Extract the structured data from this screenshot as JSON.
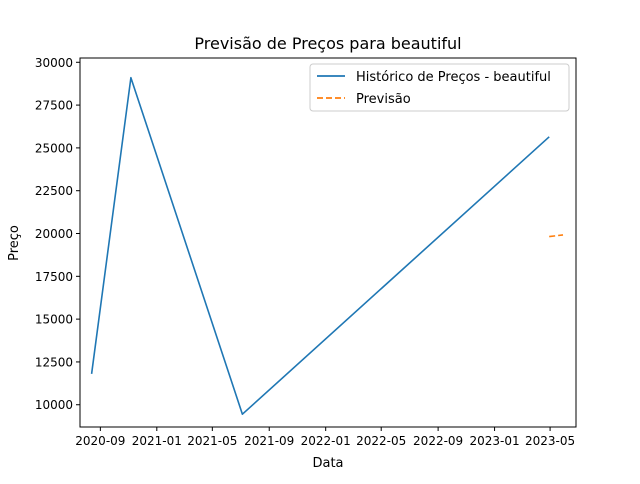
{
  "chart_data": {
    "type": "line",
    "title": "Previsão de Preços para beautiful",
    "xlabel": "Data",
    "ylabel": "Preço",
    "x_ticks": [
      "2020-09",
      "2021-01",
      "2021-05",
      "2021-09",
      "2022-01",
      "2022-05",
      "2022-09",
      "2023-01",
      "2023-05"
    ],
    "y_ticks": [
      10000,
      12500,
      15000,
      17500,
      20000,
      22500,
      25000,
      27500,
      30000
    ],
    "xlim": [
      "2020-07-19",
      "2023-06-26"
    ],
    "ylim": [
      8700,
      30250
    ],
    "grid": false,
    "legend_position": "top-right",
    "series": [
      {
        "name": "Histórico de Preços - beautiful",
        "color": "#1f77b4",
        "style": "solid",
        "points": [
          {
            "x": "2020-08-13",
            "y": 11800
          },
          {
            "x": "2020-11-06",
            "y": 29100
          },
          {
            "x": "2021-07-05",
            "y": 9450
          },
          {
            "x": "2023-04-29",
            "y": 25650
          }
        ]
      },
      {
        "name": "Previsão",
        "color": "#ff7f0e",
        "style": "dashed",
        "points": [
          {
            "x": "2023-04-29",
            "y": 19820
          },
          {
            "x": "2023-05-29",
            "y": 19920
          }
        ]
      }
    ]
  }
}
